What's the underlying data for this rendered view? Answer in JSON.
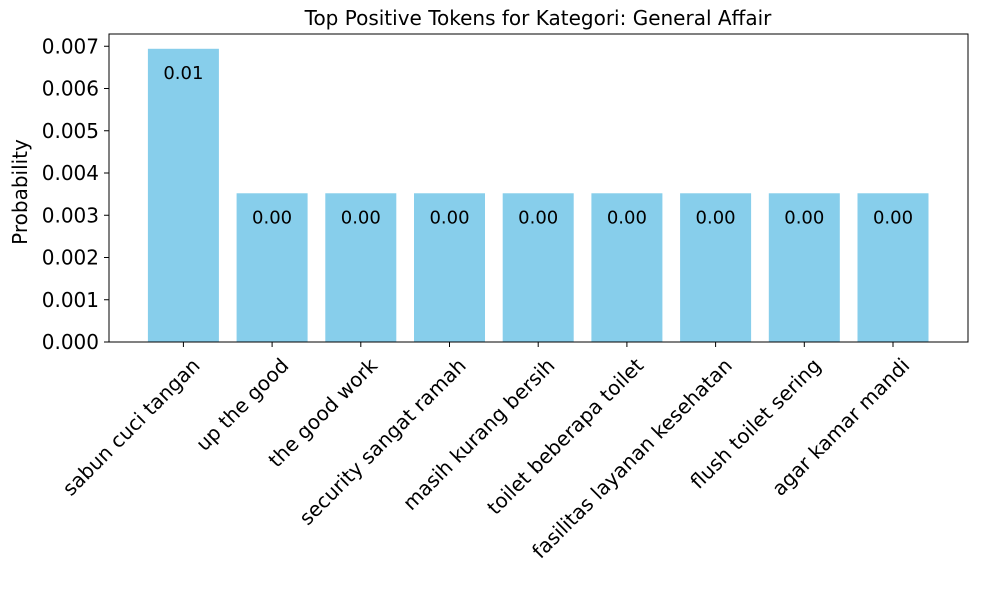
{
  "chart_data": {
    "type": "bar",
    "title": "Top Positive Tokens for Kategori: General Affair",
    "xlabel": "",
    "ylabel": "Probability",
    "categories": [
      "sabun cuci tangan",
      "up the good",
      "the good work",
      "security sangat ramah",
      "masih kurang bersih",
      "toilet beberapa toilet",
      "fasilitas layanan kesehatan",
      "flush toilet sering",
      "agar kamar mandi"
    ],
    "values": [
      0.00694,
      0.00352,
      0.00352,
      0.00352,
      0.00352,
      0.00352,
      0.00352,
      0.00352,
      0.00352
    ],
    "data_labels": [
      "0.01",
      "0.00",
      "0.00",
      "0.00",
      "0.00",
      "0.00",
      "0.00",
      "0.00",
      "0.00"
    ],
    "yticks": [
      "0.000",
      "0.001",
      "0.002",
      "0.003",
      "0.004",
      "0.005",
      "0.006",
      "0.007"
    ],
    "ylim": [
      0,
      0.00729
    ],
    "bar_color": "#87CEEB",
    "grid": false,
    "legend": "none"
  }
}
